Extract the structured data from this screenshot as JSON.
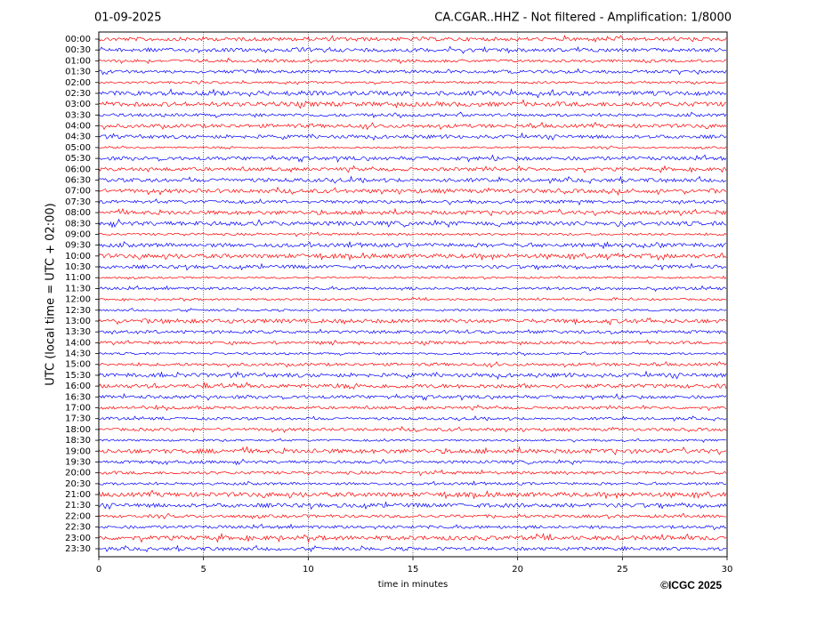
{
  "chart_data": {
    "type": "helicorder",
    "date": "01-09-2025",
    "title": "CA.CGAR..HHZ - Not filtered - Amplification: 1/8000",
    "ylabel": "UTC (local time = UTC + 02:00)",
    "xlabel": "time in minutes",
    "copyright": "©ICGC 2025",
    "categories": [
      "00:00",
      "00:30",
      "01:00",
      "01:30",
      "02:00",
      "02:30",
      "03:00",
      "03:30",
      "04:00",
      "04:30",
      "05:00",
      "05:30",
      "06:00",
      "06:30",
      "07:00",
      "07:30",
      "08:00",
      "08:30",
      "09:00",
      "09:30",
      "10:00",
      "10:30",
      "11:00",
      "11:30",
      "12:00",
      "12:30",
      "13:00",
      "13:30",
      "14:00",
      "14:30",
      "15:00",
      "15:30",
      "16:00",
      "16:30",
      "17:00",
      "17:30",
      "18:00",
      "18:30",
      "19:00",
      "19:30",
      "20:00",
      "20:30",
      "21:00",
      "21:30",
      "22:00",
      "22:30",
      "23:00",
      "23:30"
    ],
    "colors": [
      "#ff0000",
      "#0000ff"
    ],
    "xlim": [
      0,
      30
    ],
    "xticks": [
      0,
      5,
      10,
      15,
      20,
      25,
      30
    ],
    "grid": true
  }
}
